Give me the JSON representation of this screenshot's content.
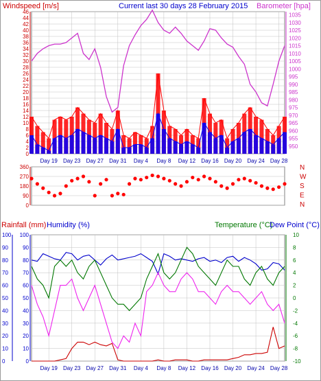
{
  "chart_data": [
    {
      "type": "line",
      "title": "Current last 30 days 28 February 2015",
      "ylabel_left": "Windspeed [m/s]",
      "ylabel_right": "Barometer [hpa]",
      "x_ticks": [
        "Day 19",
        "Day 23",
        "Day 27",
        "Day 31",
        "Day 4",
        "Day 8",
        "Day 12",
        "Day 16",
        "Day 20",
        "Day 24",
        "Day 28"
      ],
      "ylim_left": [
        0,
        46
      ],
      "ylim_right": [
        945,
        1037
      ],
      "yticks_left": [
        "46",
        "44",
        "42",
        "40",
        "38",
        "36",
        "34",
        "32",
        "30",
        "28",
        "26",
        "24",
        "22",
        "20",
        "18",
        "16",
        "14",
        "12",
        "10",
        "8",
        "6",
        "4",
        "2",
        "0"
      ],
      "yticks_right": [
        "1035",
        "1030",
        "1025",
        "1020",
        "1015",
        "1010",
        "1005",
        "1000",
        "995",
        "990",
        "985",
        "980",
        "975",
        "970",
        "965",
        "960",
        "955",
        "950"
      ],
      "x_range": [
        16,
        60
      ],
      "grid": true,
      "colors": {
        "gust": "#ff0000",
        "wind": "#0000ff",
        "barometer": "#cc33cc",
        "axis_left": "#cc0000",
        "axis_right": "#cc33cc",
        "title": "#0000cc",
        "grid": "#c0c0c0"
      },
      "series": [
        {
          "key": "gust",
          "axis": "left",
          "x": [
            16,
            17,
            18,
            19,
            20,
            21,
            22,
            23,
            24,
            25,
            26,
            27,
            28,
            29,
            30,
            31,
            32,
            33,
            34,
            35,
            36,
            37,
            38,
            39,
            40,
            41,
            42,
            43,
            44,
            45,
            46,
            47,
            48,
            49,
            50,
            51,
            52,
            53,
            54,
            55,
            56,
            57,
            58,
            59,
            60
          ],
          "values": [
            12,
            9,
            7,
            5,
            11,
            12,
            11,
            12,
            15,
            13,
            11,
            10,
            13,
            10,
            8,
            14,
            6,
            5,
            7,
            6,
            5,
            9,
            26,
            14,
            9,
            8,
            6,
            8,
            6,
            5,
            18,
            13,
            10,
            11,
            5,
            8,
            10,
            13,
            15,
            12,
            11,
            8,
            6,
            9,
            12
          ]
        },
        {
          "key": "wind",
          "axis": "left",
          "x": [
            16,
            17,
            18,
            19,
            20,
            21,
            22,
            23,
            24,
            25,
            26,
            27,
            28,
            29,
            30,
            31,
            32,
            33,
            34,
            35,
            36,
            37,
            38,
            39,
            40,
            41,
            42,
            43,
            44,
            45,
            46,
            47,
            48,
            49,
            50,
            51,
            52,
            53,
            54,
            55,
            56,
            57,
            58,
            59,
            60
          ],
          "values": [
            6,
            3,
            2,
            1,
            5,
            6,
            5,
            6,
            8,
            7,
            6,
            5,
            6,
            5,
            4,
            8,
            2,
            2,
            3,
            3,
            2,
            5,
            13,
            8,
            5,
            4,
            3,
            4,
            3,
            2,
            10,
            7,
            5,
            6,
            2,
            4,
            5,
            7,
            8,
            6,
            5,
            4,
            3,
            5,
            7
          ]
        },
        {
          "key": "barometer",
          "axis": "right",
          "x": [
            16,
            17,
            18,
            19,
            20,
            21,
            22,
            23,
            24,
            25,
            26,
            27,
            28,
            29,
            30,
            31,
            32,
            33,
            34,
            35,
            36,
            37,
            38,
            39,
            40,
            41,
            42,
            43,
            44,
            45,
            46,
            47,
            48,
            49,
            50,
            51,
            52,
            53,
            54,
            55,
            56,
            57,
            58,
            59,
            60
          ],
          "values": [
            1005,
            1010,
            1013,
            1015,
            1016,
            1016,
            1017,
            1020,
            1023,
            1010,
            1006,
            1013,
            1001,
            982,
            972,
            975,
            1002,
            1015,
            1022,
            1028,
            1032,
            1038,
            1030,
            1025,
            1023,
            1027,
            1023,
            1018,
            1015,
            1012,
            1018,
            1026,
            1025,
            1020,
            1016,
            1014,
            1008,
            1003,
            990,
            985,
            978,
            976,
            990,
            1005,
            1015
          ]
        }
      ]
    },
    {
      "type": "scatter",
      "ylabel_right": [
        "N",
        "W",
        "S",
        "E",
        "N"
      ],
      "yticks_left": [
        "360",
        "270",
        "180",
        "90",
        "0"
      ],
      "ylim": [
        0,
        360
      ],
      "x_range": [
        16,
        60
      ],
      "colors": {
        "points": "#ff0000",
        "axis_left": "#cc0000",
        "axis_right": "#cc0000"
      },
      "series": [
        {
          "key": "direction",
          "x": [
            16,
            17,
            18,
            19,
            20,
            21,
            22,
            23,
            24,
            25,
            26,
            27,
            28,
            29,
            30,
            31,
            32,
            33,
            34,
            35,
            36,
            37,
            38,
            39,
            40,
            41,
            42,
            43,
            44,
            45,
            46,
            47,
            48,
            49,
            50,
            51,
            52,
            53,
            54,
            55,
            56,
            57,
            58,
            59,
            60
          ],
          "values": [
            250,
            200,
            160,
            120,
            90,
            110,
            180,
            230,
            250,
            270,
            220,
            90,
            200,
            240,
            90,
            110,
            100,
            200,
            250,
            240,
            260,
            280,
            270,
            250,
            230,
            200,
            180,
            220,
            260,
            240,
            270,
            250,
            220,
            180,
            160,
            200,
            240,
            250,
            230,
            210,
            180,
            160,
            150,
            170,
            200
          ]
        }
      ]
    },
    {
      "type": "line",
      "ylabel_left": [
        "Rainfall (mm)",
        "Humidity (%)"
      ],
      "ylabel_right": [
        "Temperature (°C)",
        "Dew Point (°C)"
      ],
      "x_ticks": [
        "Day 19",
        "Day 23",
        "Day 27",
        "Day 31",
        "Day 4",
        "Day 8",
        "Day 12",
        "Day 16",
        "Day 20",
        "Day 24",
        "Day 28"
      ],
      "yticks_rain": [
        "100",
        "90",
        "80",
        "70",
        "60",
        "50",
        "40",
        "30",
        "20",
        "10",
        "0"
      ],
      "yticks_humidity": [
        "100",
        "90",
        "80",
        "70",
        "60",
        "50",
        "40",
        "30",
        "20",
        "10",
        "0"
      ],
      "yticks_temp": [
        "10",
        "8",
        "6",
        "4",
        "2",
        "0",
        "-2",
        "-4",
        "-6",
        "-8",
        "-10"
      ],
      "ylim_left": [
        0,
        100
      ],
      "ylim_right": [
        -10,
        10
      ],
      "x_range": [
        16,
        60
      ],
      "grid": true,
      "colors": {
        "rainfall": "#cc0000",
        "humidity": "#0000cc",
        "temperature": "#007700",
        "dewpoint": "#ee22ee",
        "label_rain": "#cc0000",
        "label_humidity": "#0000cc",
        "label_temp": "#007700",
        "label_dew": "#0000cc",
        "axis_rain": "#0000cc",
        "axis_humidity": "#0000cc",
        "axis_temp": "#007700",
        "grid": "#c0c0c0"
      },
      "series": [
        {
          "key": "humidity",
          "axis": "left",
          "x": [
            16,
            17,
            18,
            19,
            20,
            21,
            22,
            23,
            24,
            25,
            26,
            27,
            28,
            29,
            30,
            31,
            32,
            33,
            34,
            35,
            36,
            37,
            38,
            39,
            40,
            41,
            42,
            43,
            44,
            45,
            46,
            47,
            48,
            49,
            50,
            51,
            52,
            53,
            54,
            55,
            56,
            57,
            58,
            59,
            60
          ],
          "values": [
            80,
            79,
            85,
            83,
            81,
            80,
            86,
            85,
            80,
            83,
            84,
            80,
            76,
            81,
            84,
            80,
            81,
            82,
            83,
            85,
            82,
            79,
            69,
            85,
            83,
            80,
            81,
            80,
            79,
            81,
            82,
            79,
            80,
            78,
            82,
            83,
            79,
            82,
            80,
            77,
            72,
            73,
            78,
            77,
            72
          ]
        },
        {
          "key": "temperature",
          "axis": "right",
          "x": [
            16,
            17,
            18,
            19,
            20,
            21,
            22,
            23,
            24,
            25,
            26,
            27,
            28,
            29,
            30,
            31,
            32,
            33,
            34,
            35,
            36,
            37,
            38,
            39,
            40,
            41,
            42,
            43,
            44,
            45,
            46,
            47,
            48,
            49,
            50,
            51,
            52,
            53,
            54,
            55,
            56,
            57,
            58,
            59,
            60
          ],
          "values": [
            5,
            3,
            2,
            0,
            5,
            6,
            5,
            6,
            4,
            3,
            5,
            6,
            4,
            2,
            0,
            -1,
            -1,
            -2,
            -1,
            0,
            3,
            5,
            7,
            4,
            3,
            4,
            6,
            8,
            7,
            5,
            4,
            3,
            2,
            4,
            6,
            5,
            5,
            3,
            2,
            4,
            5,
            3,
            2,
            4,
            5
          ]
        },
        {
          "key": "dewpoint",
          "axis": "right",
          "x": [
            16,
            17,
            18,
            19,
            20,
            21,
            22,
            23,
            24,
            25,
            26,
            27,
            28,
            29,
            30,
            31,
            32,
            33,
            34,
            35,
            36,
            37,
            38,
            39,
            40,
            41,
            42,
            43,
            44,
            45,
            46,
            47,
            48,
            49,
            50,
            51,
            52,
            53,
            54,
            55,
            56,
            57,
            58,
            59,
            60
          ],
          "values": [
            2,
            -1,
            -3,
            -6,
            -2,
            2,
            2,
            3,
            0,
            -2,
            0,
            2,
            -1,
            -4,
            -7,
            -8,
            -6,
            -7,
            -4,
            -6,
            1,
            2,
            4,
            2,
            1,
            1,
            3,
            4,
            3,
            1,
            1,
            0,
            -1,
            1,
            2,
            1,
            1,
            0,
            -1,
            0,
            1,
            -1,
            -2,
            -1,
            -4
          ]
        },
        {
          "key": "rainfall",
          "axis": "left",
          "x": [
            16,
            17,
            18,
            19,
            20,
            21,
            22,
            23,
            24,
            25,
            26,
            27,
            28,
            29,
            30,
            31,
            32,
            33,
            34,
            35,
            36,
            37,
            38,
            39,
            40,
            41,
            42,
            43,
            44,
            45,
            46,
            47,
            48,
            49,
            50,
            51,
            52,
            53,
            54,
            55,
            56,
            57,
            58,
            59,
            60
          ],
          "values": [
            0,
            0,
            0,
            0,
            0,
            1,
            2,
            10,
            15,
            15,
            13,
            15,
            13,
            12,
            14,
            1,
            0,
            0,
            0,
            0,
            0,
            0,
            1,
            0,
            0,
            1,
            1,
            1,
            0,
            0,
            1,
            1,
            1,
            1,
            1,
            2,
            3,
            5,
            5,
            6,
            6,
            7,
            27,
            10,
            12
          ]
        }
      ]
    }
  ]
}
